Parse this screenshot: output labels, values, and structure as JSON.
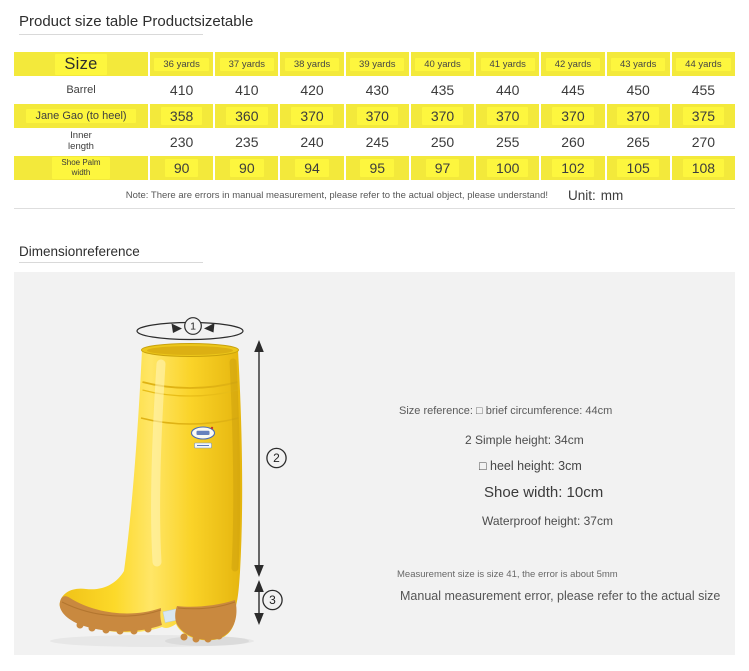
{
  "sections": [
    {
      "title": "Product size table Productsizetable"
    },
    {
      "title": "Dimensionreference"
    }
  ],
  "size_table": {
    "corner_label": "Size",
    "columns": [
      "36 yards",
      "37 yards",
      "38 yards",
      "39 yards",
      "40 yards",
      "41 yards",
      "42 yards",
      "43 yards",
      "44 yards"
    ],
    "rows": [
      {
        "label_lines": [
          "Barrel"
        ],
        "yellow": false,
        "values": [
          "410",
          "410",
          "420",
          "430",
          "435",
          "440",
          "445",
          "450",
          "455"
        ]
      },
      {
        "label_lines": [
          "Jane Gao (to heel)"
        ],
        "yellow": true,
        "values": [
          "358",
          "360",
          "370",
          "370",
          "370",
          "370",
          "370",
          "370",
          "375"
        ]
      },
      {
        "label_lines": [
          "Inner",
          "length"
        ],
        "yellow": false,
        "values": [
          "230",
          "235",
          "240",
          "245",
          "250",
          "255",
          "260",
          "265",
          "270"
        ]
      },
      {
        "label_lines": [
          "Shoe Palm",
          "width"
        ],
        "yellow": true,
        "values": [
          "90",
          "90",
          "94",
          "95",
          "97",
          "100",
          "102",
          "105",
          "108"
        ]
      }
    ],
    "note": "Note: There are errors in manual measurement, please refer to the actual object, please understand!",
    "unit_label": "Unit:",
    "unit_value": "mm"
  },
  "dimension_panel": {
    "annotation_labels": [
      "1",
      "2",
      "3"
    ],
    "notes": [
      "Size reference: □ brief circumference: 44cm",
      "2 Simple height: 34cm",
      "□ heel height: 3cm",
      "Shoe width: 10cm",
      "Waterproof height: 37cm",
      "Measurement size is size 41, the error is about 5mm",
      "Manual measurement error, please refer to the actual size"
    ]
  },
  "colors": {
    "row_yellow": "#f3e93b",
    "highlight_yellow": "#fdf63e",
    "panel_gray": "#f2f2f2",
    "boot_yellow": "#fbd92d",
    "sole_tan": "#c9893f"
  }
}
